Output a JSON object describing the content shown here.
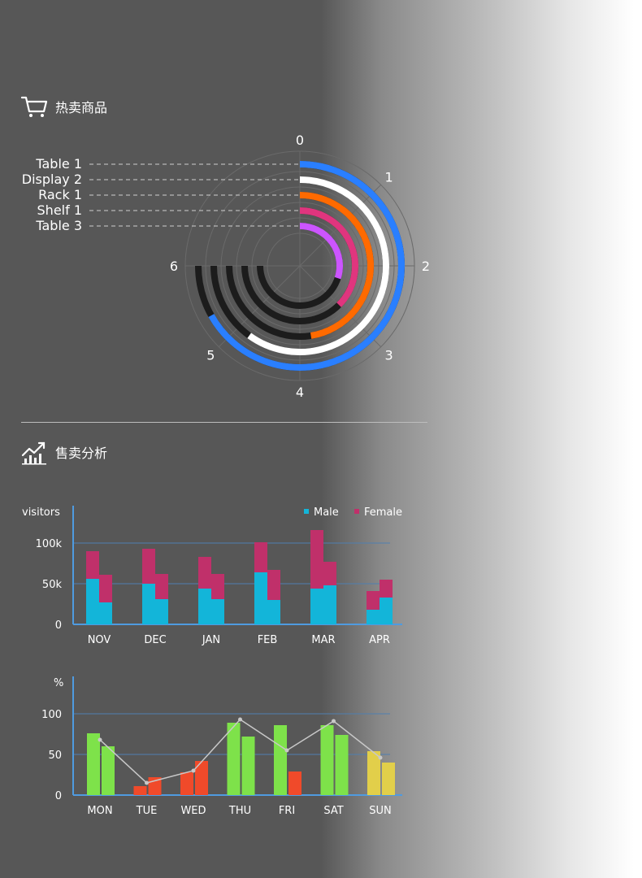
{
  "sections": {
    "hot_products": {
      "title": "热卖商品",
      "icon": "shopping-cart-icon"
    },
    "sales_analysis": {
      "title": "售卖分析",
      "icon": "trending-chart-icon"
    }
  },
  "chart_data": [
    {
      "type": "radial-bar",
      "categories": [
        "Table 1",
        "Display 2",
        "Rack 1",
        "Shelf 1",
        "Table 3"
      ],
      "values": [
        5.35,
        4.8,
        3.8,
        3.0,
        2.4
      ],
      "axis_labels": [
        "0",
        "1",
        "2",
        "3",
        "4",
        "5",
        "6"
      ],
      "xlim": [
        0,
        6
      ],
      "colors": [
        "#2a7fff",
        "#ffffff",
        "#ff6a00",
        "#e0357e",
        "#cc55ff"
      ],
      "track_color": "#1c1c1c"
    },
    {
      "type": "bar",
      "ylabel": "visitors",
      "categories": [
        "NOV",
        "DEC",
        "JAN",
        "FEB",
        "MAR",
        "APR"
      ],
      "yticks": [
        "0",
        "50k",
        "100k"
      ],
      "ylim": [
        0,
        120000
      ],
      "legend": {
        "position": "top-right"
      },
      "series": [
        {
          "name": "Male",
          "color": "#13b5d9",
          "values_a": [
            56000,
            50000,
            44000,
            64000,
            44000,
            18000
          ],
          "values_b": [
            27000,
            31000,
            31000,
            30000,
            48000,
            33000
          ]
        },
        {
          "name": "Female",
          "color": "#c0306a",
          "values_a": [
            34000,
            43000,
            39000,
            37000,
            72000,
            23000
          ],
          "values_b": [
            34000,
            31000,
            31000,
            37000,
            29000,
            22000
          ]
        }
      ]
    },
    {
      "type": "bar-line",
      "ylabel": "%",
      "categories": [
        "MON",
        "TUE",
        "WED",
        "THU",
        "FRI",
        "SAT",
        "SUN"
      ],
      "yticks": [
        "0",
        "50",
        "100"
      ],
      "ylim": [
        0,
        100
      ],
      "bars_a": [
        76,
        11,
        28,
        89,
        86,
        86,
        54
      ],
      "bars_b": [
        60,
        22,
        42,
        72,
        29,
        74,
        40
      ],
      "colors": [
        "#7ee24a",
        "#f04a2a",
        "#f04a2a",
        "#7ee24a",
        "#7ee24a",
        "#7ee24a",
        "#e2cf4a"
      ],
      "colors_b": [
        "#7ee24a",
        "#f04a2a",
        "#f04a2a",
        "#7ee24a",
        "#f04a2a",
        "#7ee24a",
        "#e2cf4a"
      ],
      "line": [
        68,
        15,
        30,
        93,
        55,
        91,
        46
      ],
      "line_color": "#c8c8c8"
    }
  ]
}
